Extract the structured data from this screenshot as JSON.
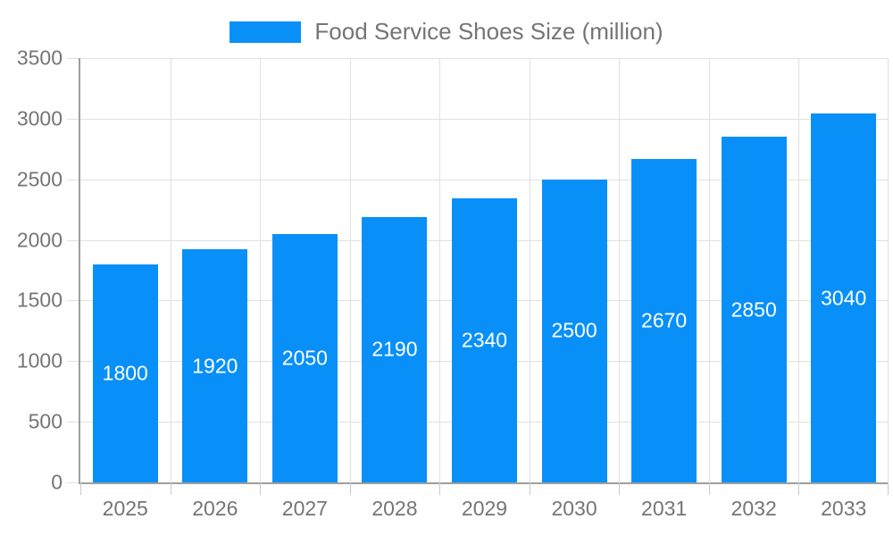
{
  "legend": {
    "label": "Food Service Shoes Size (million)"
  },
  "chart_data": {
    "type": "bar",
    "title": "Food Service Shoes Size (million)",
    "categories": [
      "2025",
      "2026",
      "2027",
      "2028",
      "2029",
      "2030",
      "2031",
      "2032",
      "2033"
    ],
    "values": [
      1800,
      1920,
      2050,
      2190,
      2340,
      2500,
      2670,
      2850,
      3040
    ],
    "series": [
      {
        "name": "Food Service Shoes Size (million)",
        "values": [
          1800,
          1920,
          2050,
          2190,
          2340,
          2500,
          2670,
          2850,
          3040
        ]
      }
    ],
    "xlabel": "",
    "ylabel": "",
    "ylim": [
      0,
      3500
    ],
    "yticks": [
      0,
      500,
      1000,
      1500,
      2000,
      2500,
      3000,
      3500
    ],
    "grid": true,
    "legend_position": "top",
    "value_labels": "inside-center",
    "colors": {
      "bar": "#0990f8",
      "gridline": "#e0e0e0",
      "axis_line": "#9e9e9e",
      "tick_mark": "#c9c9c9",
      "axis_text": "#757575",
      "value_label_text": "#ffffff",
      "background": "#ffffff"
    }
  }
}
